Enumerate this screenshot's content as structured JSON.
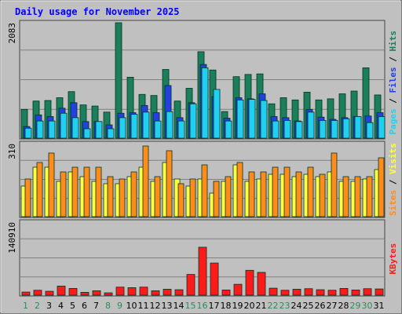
{
  "chart_data": {
    "type": "bar",
    "title": "Daily usage for November 2025",
    "categories": [
      "1",
      "2",
      "3",
      "4",
      "5",
      "6",
      "7",
      "8",
      "9",
      "10",
      "11",
      "12",
      "13",
      "14",
      "15",
      "16",
      "17",
      "18",
      "19",
      "20",
      "21",
      "22",
      "23",
      "24",
      "25",
      "26",
      "27",
      "28",
      "29",
      "30",
      "31"
    ],
    "weekend_days": [
      "1",
      "2",
      "8",
      "9",
      "15",
      "16",
      "22",
      "23",
      "29",
      "30"
    ],
    "panels": [
      {
        "id": "hits-files-pages",
        "max_label": "2083",
        "ymax": 2083,
        "legend": [
          "Pages",
          "Files",
          "Hits"
        ],
        "series": [
          {
            "name": "Hits",
            "color": "#1a7f5a",
            "values": [
              520,
              670,
              680,
              730,
              840,
              600,
              580,
              470,
              2083,
              1100,
              790,
              770,
              1240,
              670,
              900,
              1560,
              1230,
              480,
              1110,
              1150,
              1160,
              620,
              730,
              690,
              830,
              690,
              710,
              800,
              850,
              1270,
              780
            ]
          },
          {
            "name": "Files",
            "color": "#2340e0",
            "values": [
              210,
              420,
              390,
              540,
              640,
              300,
              300,
              240,
              450,
              460,
              590,
              460,
              950,
              370,
              640,
              1330,
              750,
              360,
              730,
              710,
              800,
              390,
              370,
              310,
              520,
              380,
              340,
              370,
              390,
              400,
              460
            ]
          },
          {
            "name": "Pages",
            "color": "#21d0f0",
            "values": [
              180,
              310,
              310,
              450,
              370,
              170,
              300,
              170,
              370,
              430,
              470,
              310,
              480,
              310,
              620,
              1270,
              880,
              310,
              690,
              700,
              680,
              310,
              320,
              300,
              470,
              320,
              320,
              350,
              390,
              280,
              390
            ]
          }
        ]
      },
      {
        "id": "visits-sites",
        "max_label": "310",
        "ymax": 310,
        "legend": [
          "Sites",
          "Visits"
        ],
        "series": [
          {
            "name": "Visits",
            "color": "#ffff40",
            "values": [
              130,
              210,
              210,
              150,
              190,
              170,
              150,
              140,
              140,
              170,
              210,
              150,
              230,
              160,
              130,
              160,
              100,
              150,
              220,
              150,
              160,
              180,
              180,
              170,
              180,
              170,
              190,
              150,
              150,
              160,
              200
            ]
          },
          {
            "name": "Sites",
            "color": "#ff8c1a",
            "values": [
              160,
              230,
              270,
              190,
              210,
              210,
              210,
              170,
              160,
              190,
              300,
              170,
              280,
              140,
              160,
              220,
              150,
              170,
              230,
              190,
              190,
              210,
              210,
              190,
              210,
              180,
              270,
              170,
              170,
              170,
              250
            ]
          }
        ]
      },
      {
        "id": "kbytes",
        "max_label": "140910",
        "ymax": 140910,
        "legend": [
          "KBytes"
        ],
        "series": [
          {
            "name": "KBytes",
            "color": "#ff1a1a",
            "values": [
              6000,
              9500,
              7500,
              17500,
              13000,
              5500,
              8500,
              4500,
              15500,
              14500,
              15500,
              8500,
              11500,
              10500,
              40000,
              92500,
              62000,
              10000,
              21000,
              48000,
              44000,
              13500,
              9500,
              11500,
              12500,
              10500,
              9500,
              13000,
              10000,
              12500,
              12000
            ]
          }
        ]
      }
    ]
  },
  "colors": {
    "background": "#c0c0c0",
    "grid": "#808080",
    "title": "#0000ff",
    "weekday_label": "#000000",
    "weekend_label": "#2e8b57"
  }
}
